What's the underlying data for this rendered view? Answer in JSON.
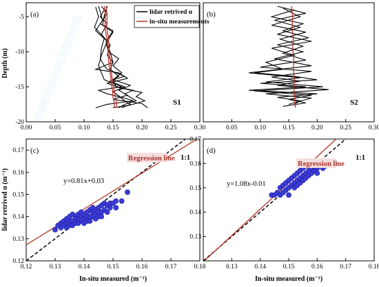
{
  "chart_data": [
    {
      "panel": "(a)",
      "type": "line",
      "station": "S1",
      "ylabel": "Depth (m)",
      "xlim": [
        0,
        0.3
      ],
      "ylim": [
        -20,
        -3
      ],
      "xticks": [
        "0.00",
        "0.05",
        "0.10",
        "0.15",
        "0.20",
        "0.25",
        "0.30"
      ],
      "yticks": [
        "-5",
        "-10",
        "-15",
        "-20"
      ],
      "legend": {
        "position": "top-right",
        "entries": [
          "lidar retrived α",
          "in-situ measurements"
        ]
      },
      "series": [
        {
          "name": "lidar retrived α",
          "color": "#000000",
          "profiles": [
            {
              "x": [
                0.12,
                0.125,
                0.118,
                0.135,
                0.13,
                0.128,
                0.135,
                0.14,
                0.155,
                0.17,
                0.15,
                0.155,
                0.185,
                0.17,
                0.18,
                0.19,
                0.17,
                0.16
              ],
              "y": [
                -3.6,
                -5,
                -6.5,
                -8,
                -9.5,
                -11,
                -12,
                -12.5,
                -13,
                -13.5,
                -14,
                -15,
                -15.5,
                -16,
                -16.5,
                -17,
                -17.5,
                -18
              ]
            },
            {
              "x": [
                0.13,
                0.14,
                0.128,
                0.15,
                0.138,
                0.145,
                0.15,
                0.12,
                0.16,
                0.175,
                0.14,
                0.165,
                0.2,
                0.19,
                0.205,
                0.18,
                0.15
              ],
              "y": [
                -3.5,
                -4.5,
                -6,
                -7,
                -8.5,
                -10,
                -11.5,
                -12.5,
                -13,
                -13.8,
                -14.5,
                -15.2,
                -15.8,
                -16.4,
                -17,
                -17.6,
                -18
              ]
            },
            {
              "x": [
                0.125,
                0.132,
                0.12,
                0.14,
                0.135,
                0.13,
                0.125,
                0.13,
                0.135,
                0.15,
                0.165,
                0.125,
                0.14,
                0.165,
                0.185,
                0.14,
                0.12
              ],
              "y": [
                -3.5,
                -5.5,
                -7,
                -8.5,
                -9.5,
                -10.5,
                -12,
                -13,
                -14,
                -14.5,
                -15,
                -15.5,
                -16,
                -16.5,
                -17,
                -17.5,
                -18
              ]
            },
            {
              "x": [
                0.135,
                0.128,
                0.14,
                0.13,
                0.145,
                0.14,
                0.15,
                0.145,
                0.16,
                0.145,
                0.17,
                0.15,
                0.16,
                0.17,
                0.18,
                0.165
              ],
              "y": [
                -4,
                -5,
                -6,
                -7.5,
                -9,
                -10.5,
                -11.5,
                -12.5,
                -13.5,
                -14.2,
                -15,
                -15.7,
                -16.3,
                -17,
                -17.5,
                -18
              ]
            },
            {
              "x": [
                0.14,
                0.135,
                0.132,
                0.15,
                0.138,
                0.142,
                0.16,
                0.15,
                0.165,
                0.15,
                0.18,
                0.16,
                0.175,
                0.15,
                0.2,
                0.21
              ],
              "y": [
                -3.5,
                -4.8,
                -6.2,
                -7.2,
                -8.8,
                -10,
                -11,
                -12,
                -13,
                -14,
                -14.8,
                -15.5,
                -16.2,
                -16.8,
                -17.4,
                -18
              ]
            }
          ]
        },
        {
          "name": "in-situ measurements",
          "color": "#b5342a",
          "profiles": [
            {
              "x": [
                0.138,
                0.14,
                0.139,
                0.142,
                0.143,
                0.145,
                0.147,
                0.148,
                0.15,
                0.152,
                0.154,
                0.156,
                0.157
              ],
              "y": [
                -3.5,
                -5,
                -6.5,
                -8,
                -9.5,
                -11,
                -12.5,
                -13.5,
                -14.5,
                -15.5,
                -16.5,
                -17.3,
                -18
              ]
            },
            {
              "x": [
                0.135,
                0.137,
                0.136,
                0.139,
                0.141,
                0.142,
                0.144,
                0.146,
                0.147,
                0.149,
                0.15,
                0.152,
                0.153
              ],
              "y": [
                -3.5,
                -5,
                -6.5,
                -8,
                -9.5,
                -11,
                -12.5,
                -13.5,
                -14.5,
                -15.5,
                -16.5,
                -17.3,
                -18
              ]
            }
          ]
        }
      ]
    },
    {
      "panel": "(b)",
      "type": "line",
      "station": "S2",
      "xlim": [
        0,
        0.3
      ],
      "ylim": [
        -20,
        -3
      ],
      "xticks": [
        "0.05",
        "0.10",
        "0.15",
        "0.20",
        "0.25",
        "0.30"
      ],
      "series": [
        {
          "name": "lidar retrived α",
          "color": "#000000",
          "profiles": [
            {
              "x": [
                0.13,
                0.18,
                0.125,
                0.17,
                0.13,
                0.19,
                0.12,
                0.16,
                0.11,
                0.14,
                0.09,
                0.16,
                0.2,
                0.1,
                0.18,
                0.08,
                0.2,
                0.13,
                0.17,
                0.16
              ],
              "y": [
                -3.5,
                -4.5,
                -5.5,
                -6.5,
                -7.5,
                -8.5,
                -9.5,
                -10.5,
                -11.5,
                -12.5,
                -13,
                -13.5,
                -14,
                -14.5,
                -15,
                -15.5,
                -16,
                -16.5,
                -17,
                -17.5
              ]
            },
            {
              "x": [
                0.16,
                0.12,
                0.175,
                0.14,
                0.185,
                0.13,
                0.175,
                0.125,
                0.19,
                0.08,
                0.17,
                0.11,
                0.21,
                0.09,
                0.19,
                0.15,
                0.18,
                0.14
              ],
              "y": [
                -4,
                -5,
                -6,
                -7,
                -8,
                -9,
                -10,
                -11,
                -12,
                -13,
                -13.7,
                -14.3,
                -15,
                -15.6,
                -16.2,
                -16.8,
                -17.3,
                -17.8
              ]
            },
            {
              "x": [
                0.14,
                0.17,
                0.12,
                0.18,
                0.135,
                0.175,
                0.14,
                0.18,
                0.1,
                0.19,
                0.12,
                0.17,
                0.13,
                0.22,
                0.11,
                0.19,
                0.15
              ],
              "y": [
                -3.8,
                -5,
                -6.2,
                -7.2,
                -8.2,
                -9.2,
                -10.2,
                -11.2,
                -12.2,
                -12.8,
                -13.6,
                -14.2,
                -14.8,
                -15.4,
                -16,
                -16.6,
                -17.5
              ]
            }
          ]
        },
        {
          "name": "in-situ measurements",
          "color": "#b5342a",
          "profiles": [
            {
              "x": [
                0.155,
                0.157,
                0.156,
                0.158,
                0.157,
                0.159,
                0.158,
                0.16,
                0.159,
                0.161,
                0.16,
                0.162
              ],
              "y": [
                -3.5,
                -5,
                -6.5,
                -8,
                -9.5,
                -11,
                -12.5,
                -14,
                -15.2,
                -16.3,
                -17.2,
                -18
              ]
            }
          ]
        }
      ]
    },
    {
      "panel": "(c)",
      "type": "scatter",
      "xlabel": "In-situ measured (m⁻¹)",
      "ylabel": "lidar retrived α (m⁻¹)",
      "xlim": [
        0.12,
        0.18
      ],
      "ylim": [
        0.12,
        0.175
      ],
      "xticks": [
        "0.12",
        "0.13",
        "0.14",
        "0.15",
        "0.16",
        "0.17",
        "0.18"
      ],
      "yticks": [
        "0.12",
        "0.13",
        "0.14",
        "0.15",
        "0.16",
        "0.17"
      ],
      "regression_label": "Regression line",
      "equation": "y=0.81x+0.03",
      "identity_label": "1:1",
      "regression": {
        "slope": 0.81,
        "intercept": 0.03
      },
      "points": {
        "x": [
          0.13,
          0.131,
          0.132,
          0.132,
          0.133,
          0.133,
          0.134,
          0.134,
          0.134,
          0.135,
          0.135,
          0.135,
          0.136,
          0.136,
          0.136,
          0.137,
          0.137,
          0.137,
          0.138,
          0.138,
          0.138,
          0.139,
          0.139,
          0.139,
          0.14,
          0.14,
          0.14,
          0.141,
          0.141,
          0.141,
          0.142,
          0.142,
          0.142,
          0.143,
          0.143,
          0.143,
          0.144,
          0.144,
          0.144,
          0.145,
          0.145,
          0.145,
          0.146,
          0.146,
          0.146,
          0.147,
          0.147,
          0.148,
          0.148,
          0.149,
          0.149,
          0.15,
          0.151,
          0.151,
          0.153,
          0.155
        ],
        "y": [
          0.134,
          0.136,
          0.137,
          0.135,
          0.138,
          0.136,
          0.139,
          0.137,
          0.135,
          0.14,
          0.138,
          0.136,
          0.141,
          0.138,
          0.136,
          0.14,
          0.137,
          0.139,
          0.141,
          0.137,
          0.139,
          0.142,
          0.138,
          0.14,
          0.141,
          0.139,
          0.137,
          0.142,
          0.14,
          0.138,
          0.143,
          0.14,
          0.138,
          0.142,
          0.14,
          0.144,
          0.143,
          0.141,
          0.139,
          0.144,
          0.142,
          0.14,
          0.145,
          0.142,
          0.14,
          0.146,
          0.143,
          0.145,
          0.142,
          0.146,
          0.144,
          0.146,
          0.147,
          0.144,
          0.147,
          0.151
        ]
      }
    },
    {
      "panel": "(d)",
      "type": "scatter",
      "xlabel": "In-situ measured (m⁻¹)",
      "xlim": [
        0.12,
        0.18
      ],
      "ylim": [
        0.12,
        0.17
      ],
      "xticks": [
        "0.13",
        "0.14",
        "0.15",
        "0.16",
        "0.17",
        "0.18"
      ],
      "yticks": [
        "0.13",
        "0.14",
        "0.15",
        "0.16",
        "0.17"
      ],
      "regression_label": "Regression line",
      "equation": "y=1.08x-0.01",
      "identity_label": "1:1",
      "regression": {
        "slope": 1.08,
        "intercept": -0.01
      },
      "points": {
        "x": [
          0.144,
          0.145,
          0.146,
          0.147,
          0.147,
          0.148,
          0.148,
          0.149,
          0.149,
          0.15,
          0.15,
          0.15,
          0.151,
          0.151,
          0.152,
          0.152,
          0.152,
          0.153,
          0.153,
          0.153,
          0.154,
          0.154,
          0.154,
          0.155,
          0.155,
          0.155,
          0.156,
          0.156,
          0.156,
          0.157,
          0.157,
          0.157,
          0.158,
          0.158,
          0.158,
          0.159,
          0.159,
          0.159,
          0.16,
          0.16,
          0.16,
          0.161,
          0.161,
          0.162,
          0.162,
          0.163,
          0.163,
          0.164,
          0.165,
          0.166
        ],
        "y": [
          0.147,
          0.147,
          0.148,
          0.147,
          0.15,
          0.148,
          0.151,
          0.149,
          0.152,
          0.15,
          0.153,
          0.147,
          0.151,
          0.154,
          0.152,
          0.155,
          0.15,
          0.153,
          0.156,
          0.151,
          0.154,
          0.157,
          0.152,
          0.155,
          0.158,
          0.153,
          0.156,
          0.159,
          0.154,
          0.157,
          0.16,
          0.155,
          0.158,
          0.156,
          0.16,
          0.159,
          0.157,
          0.161,
          0.158,
          0.16,
          0.156,
          0.159,
          0.161,
          0.16,
          0.158,
          0.161,
          0.159,
          0.16,
          0.161,
          0.16
        ]
      }
    }
  ]
}
